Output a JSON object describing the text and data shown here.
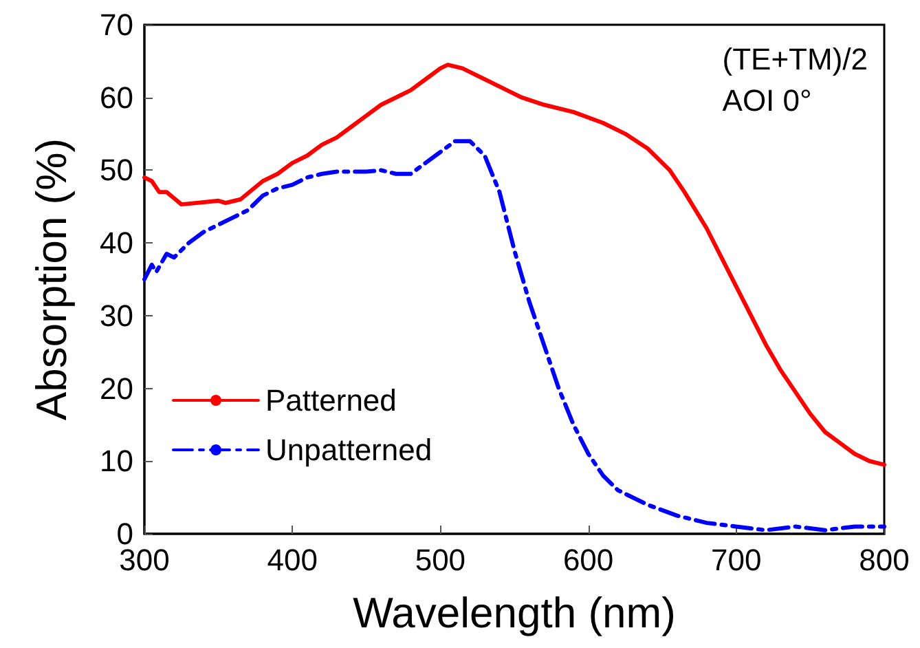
{
  "chart_data": {
    "type": "line",
    "xlabel": "Wavelength (nm)",
    "ylabel": "Absorption (%)",
    "annotations": [
      "(TE+TM)/2\nAOI 0°"
    ],
    "xlim": [
      300,
      800
    ],
    "xticks": [
      300,
      400,
      500,
      600,
      700,
      800
    ],
    "ylim": [
      0,
      70
    ],
    "yticks": [
      0,
      10,
      20,
      30,
      40,
      50,
      60,
      70
    ],
    "grid": false,
    "legend": "left",
    "marker": "none",
    "series": [
      {
        "name": "Patterned",
        "color": "#ff0000",
        "line_style": "solid",
        "x": [
          300,
          305,
          310,
          315,
          325,
          340,
          350,
          355,
          365,
          380,
          390,
          400,
          410,
          420,
          430,
          440,
          450,
          460,
          470,
          480,
          490,
          500,
          505,
          515,
          530,
          545,
          555,
          570,
          590,
          610,
          625,
          640,
          655,
          665,
          680,
          690,
          700,
          710,
          720,
          730,
          740,
          750,
          760,
          770,
          780,
          790,
          800
        ],
        "values": [
          49,
          48.5,
          47,
          47,
          45.3,
          45.6,
          45.8,
          45.5,
          46,
          48.5,
          49.5,
          51,
          52,
          53.5,
          54.5,
          56,
          57.5,
          59,
          60,
          61,
          62.5,
          64,
          64.5,
          64,
          62.5,
          61,
          60,
          59,
          58,
          56.5,
          55,
          53,
          50,
          47,
          42,
          38,
          34,
          30,
          26,
          22.5,
          19.5,
          16.5,
          14,
          12.5,
          11,
          10,
          9.5
        ]
      },
      {
        "name": "Unpatterned",
        "color": "#0000ff",
        "line_style": "dashdot",
        "x": [
          300,
          305,
          308,
          315,
          320,
          330,
          340,
          350,
          360,
          370,
          380,
          390,
          400,
          410,
          420,
          430,
          450,
          460,
          470,
          480,
          490,
          500,
          510,
          520,
          530,
          540,
          550,
          560,
          570,
          580,
          590,
          600,
          610,
          620,
          640,
          660,
          680,
          700,
          720,
          740,
          760,
          780,
          800
        ],
        "values": [
          35,
          37,
          36,
          38.5,
          38,
          40,
          41.5,
          42.5,
          43.5,
          44.5,
          46.5,
          47.5,
          48,
          49,
          49.5,
          49.8,
          49.8,
          50,
          49.5,
          49.5,
          51,
          52.5,
          54,
          54,
          52,
          47,
          39,
          32,
          26,
          20,
          15,
          11,
          8,
          6,
          4,
          2.5,
          1.5,
          1,
          0.5,
          1,
          0.5,
          1,
          1
        ]
      }
    ]
  }
}
